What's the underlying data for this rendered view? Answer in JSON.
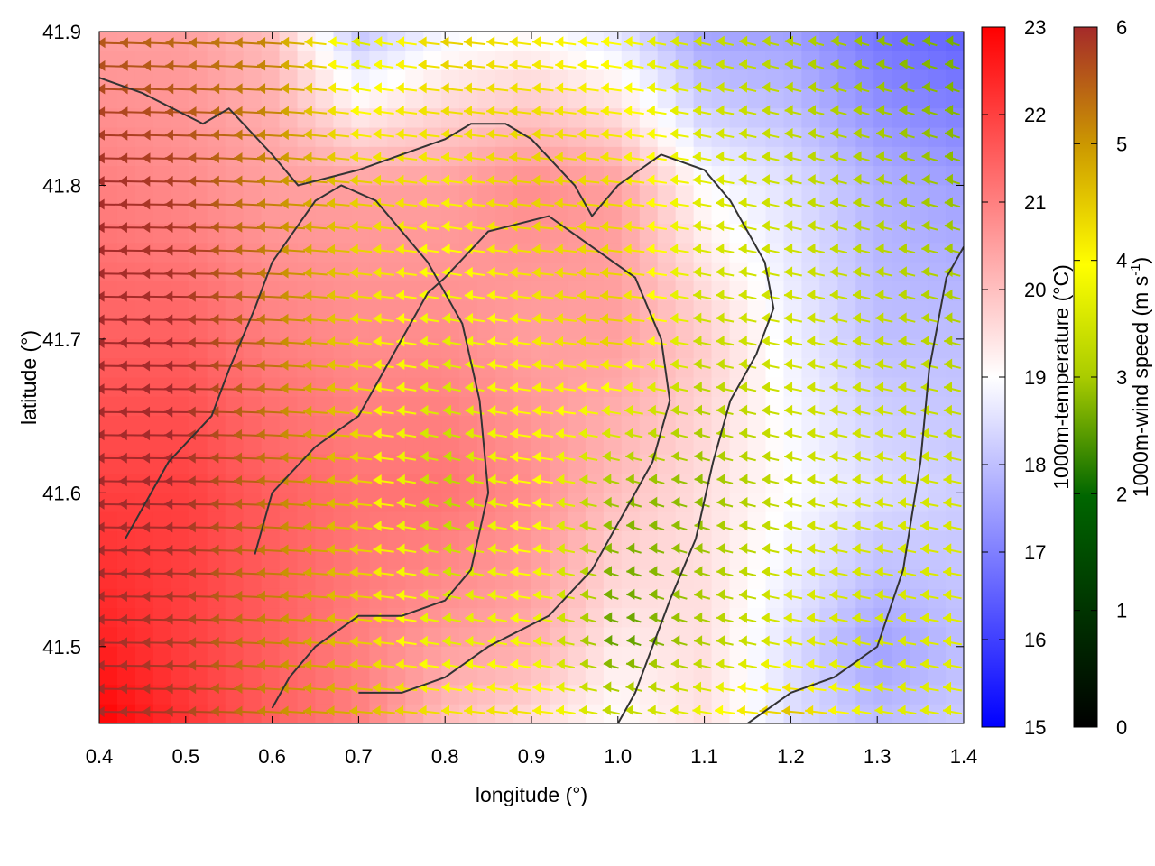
{
  "chart_data": {
    "type": "heatmap",
    "title": "",
    "xlabel": "longitude (°)",
    "ylabel": "latitude (°)",
    "xlim": [
      0.4,
      1.4
    ],
    "ylim": [
      41.45,
      41.9
    ],
    "x_ticks": [
      "0.4",
      "0.5",
      "0.6",
      "0.7",
      "0.8",
      "0.9",
      "1.0",
      "1.1",
      "1.2",
      "1.3",
      "1.4"
    ],
    "y_ticks": [
      "41.5",
      "41.6",
      "41.7",
      "41.8",
      "41.9"
    ],
    "grid": false,
    "temperature_field": {
      "label": "1000m-temperature (°C)",
      "range": [
        15,
        23
      ],
      "ticks": [
        "15",
        "16",
        "17",
        "18",
        "19",
        "20",
        "21",
        "22",
        "23"
      ],
      "colormap": [
        "#0000ff",
        "#ffffff",
        "#ff0000"
      ],
      "sample_lon": [
        0.4,
        0.5,
        0.6,
        0.7,
        0.8,
        0.9,
        1.0,
        1.1,
        1.2,
        1.3,
        1.4
      ],
      "sample_lat": [
        41.9,
        41.8,
        41.7,
        41.6,
        41.5,
        41.45
      ],
      "values": [
        [
          20.5,
          20.5,
          20.0,
          18.0,
          18.8,
          19.0,
          18.5,
          17.5,
          17.5,
          16.8,
          16.5
        ],
        [
          21.0,
          20.8,
          20.5,
          20.5,
          20.5,
          20.8,
          20.5,
          19.0,
          18.5,
          17.8,
          17.5
        ],
        [
          21.5,
          21.5,
          21.0,
          20.8,
          20.8,
          20.5,
          20.5,
          19.8,
          18.8,
          18.0,
          18.0
        ],
        [
          22.0,
          22.0,
          21.5,
          21.2,
          21.2,
          20.8,
          20.0,
          19.5,
          19.0,
          18.5,
          18.2
        ],
        [
          22.5,
          22.0,
          21.5,
          21.0,
          20.5,
          20.3,
          19.3,
          19.5,
          18.5,
          17.5,
          18.0
        ],
        [
          23.0,
          22.2,
          21.5,
          21.0,
          20.0,
          19.5,
          19.0,
          19.5,
          18.5,
          18.0,
          18.2
        ]
      ]
    },
    "wind_speed_field": {
      "label": "1000m-wind speed (m s-1)",
      "range": [
        0,
        6
      ],
      "ticks": [
        "0",
        "1",
        "2",
        "3",
        "4",
        "5",
        "6"
      ],
      "colormap": [
        "#000000",
        "#006600",
        "#aacc00",
        "#ffff00",
        "#cc9900",
        "#a52a2a"
      ],
      "sample_lon": [
        0.4,
        0.5,
        0.6,
        0.7,
        0.8,
        0.9,
        1.0,
        1.1,
        1.2,
        1.3,
        1.4
      ],
      "sample_lat": [
        41.9,
        41.8,
        41.7,
        41.6,
        41.5,
        41.45
      ],
      "values": [
        [
          5.5,
          5.3,
          5.0,
          3.0,
          4.2,
          3.8,
          3.5,
          2.8,
          2.5,
          2.2,
          2.0
        ],
        [
          6.0,
          5.8,
          5.0,
          4.2,
          3.8,
          4.2,
          4.0,
          3.2,
          2.8,
          2.5,
          2.2
        ],
        [
          6.0,
          6.0,
          5.2,
          4.0,
          3.2,
          3.8,
          4.2,
          2.8,
          3.0,
          2.8,
          2.5
        ],
        [
          6.0,
          6.0,
          5.2,
          4.2,
          2.5,
          3.8,
          2.2,
          2.2,
          2.8,
          3.0,
          3.0
        ],
        [
          6.0,
          5.8,
          5.0,
          4.2,
          3.2,
          3.5,
          1.8,
          2.5,
          3.2,
          3.0,
          3.2
        ],
        [
          6.0,
          5.8,
          5.0,
          4.5,
          4.0,
          4.0,
          2.8,
          3.5,
          4.5,
          3.2,
          3.2
        ]
      ]
    },
    "wind_direction": "predominantly westward (arrows point to the left)",
    "contour_lines": [
      {
        "level": "19",
        "points": [
          [
            0.4,
            41.87
          ],
          [
            0.45,
            41.86
          ],
          [
            0.52,
            41.84
          ],
          [
            0.55,
            41.85
          ],
          [
            0.6,
            41.82
          ],
          [
            0.63,
            41.8
          ],
          [
            0.7,
            41.81
          ],
          [
            0.75,
            41.82
          ],
          [
            0.8,
            41.83
          ],
          [
            0.83,
            41.84
          ],
          [
            0.87,
            41.84
          ],
          [
            0.9,
            41.83
          ],
          [
            0.95,
            41.8
          ],
          [
            0.97,
            41.78
          ],
          [
            1.0,
            41.8
          ],
          [
            1.05,
            41.82
          ],
          [
            1.1,
            41.81
          ],
          [
            1.13,
            41.79
          ],
          [
            1.17,
            41.75
          ],
          [
            1.18,
            41.72
          ],
          [
            1.16,
            41.69
          ],
          [
            1.13,
            41.66
          ],
          [
            1.11,
            41.62
          ],
          [
            1.09,
            41.57
          ],
          [
            1.06,
            41.53
          ],
          [
            1.02,
            41.47
          ],
          [
            1.0,
            41.45
          ]
        ]
      },
      {
        "level": "20",
        "points": [
          [
            0.58,
            41.56
          ],
          [
            0.6,
            41.6
          ],
          [
            0.65,
            41.63
          ],
          [
            0.7,
            41.65
          ],
          [
            0.73,
            41.68
          ],
          [
            0.76,
            41.71
          ],
          [
            0.78,
            41.73
          ],
          [
            0.8,
            41.74
          ],
          [
            0.85,
            41.77
          ],
          [
            0.92,
            41.78
          ],
          [
            0.97,
            41.76
          ],
          [
            1.02,
            41.74
          ],
          [
            1.05,
            41.7
          ],
          [
            1.06,
            41.66
          ],
          [
            1.04,
            41.62
          ],
          [
            1.0,
            41.58
          ],
          [
            0.97,
            41.55
          ],
          [
            0.92,
            41.52
          ],
          [
            0.85,
            41.5
          ],
          [
            0.8,
            41.48
          ],
          [
            0.75,
            41.47
          ],
          [
            0.7,
            41.47
          ]
        ]
      },
      {
        "level": "21",
        "points": [
          [
            0.43,
            41.57
          ],
          [
            0.48,
            41.62
          ],
          [
            0.53,
            41.65
          ],
          [
            0.55,
            41.68
          ],
          [
            0.58,
            41.72
          ],
          [
            0.6,
            41.75
          ],
          [
            0.65,
            41.79
          ],
          [
            0.68,
            41.8
          ],
          [
            0.72,
            41.79
          ],
          [
            0.78,
            41.75
          ],
          [
            0.82,
            41.71
          ],
          [
            0.84,
            41.66
          ],
          [
            0.85,
            41.6
          ],
          [
            0.83,
            41.55
          ],
          [
            0.8,
            41.53
          ],
          [
            0.75,
            41.52
          ],
          [
            0.7,
            41.52
          ],
          [
            0.65,
            41.5
          ],
          [
            0.62,
            41.48
          ],
          [
            0.6,
            41.46
          ]
        ]
      },
      {
        "level": "18",
        "points": [
          [
            1.15,
            41.45
          ],
          [
            1.2,
            41.47
          ],
          [
            1.25,
            41.48
          ],
          [
            1.3,
            41.5
          ],
          [
            1.33,
            41.55
          ],
          [
            1.35,
            41.62
          ],
          [
            1.36,
            41.68
          ],
          [
            1.38,
            41.74
          ],
          [
            1.4,
            41.76
          ]
        ]
      }
    ]
  }
}
